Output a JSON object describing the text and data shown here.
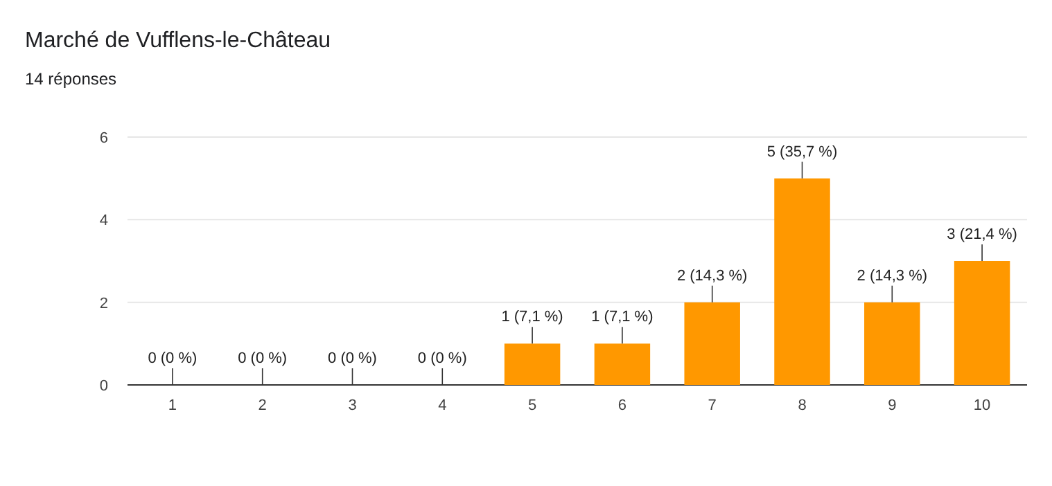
{
  "chart_data": {
    "type": "bar",
    "title": "Marché de Vufflens-le-Château",
    "subtitle": "14 réponses",
    "categories": [
      "1",
      "2",
      "3",
      "4",
      "5",
      "6",
      "7",
      "8",
      "9",
      "10"
    ],
    "values": [
      0,
      0,
      0,
      0,
      1,
      1,
      2,
      5,
      2,
      3
    ],
    "value_labels": [
      "0 (0 %)",
      "0 (0 %)",
      "0 (0 %)",
      "0 (0 %)",
      "1 (7,1 %)",
      "1 (7,1 %)",
      "2 (14,3 %)",
      "5 (35,7 %)",
      "2 (14,3 %)",
      "3 (21,4 %)"
    ],
    "color": "#ff9800",
    "ylim": [
      0,
      6
    ],
    "yticks": [
      0,
      2,
      4,
      6
    ],
    "grid": "y"
  }
}
